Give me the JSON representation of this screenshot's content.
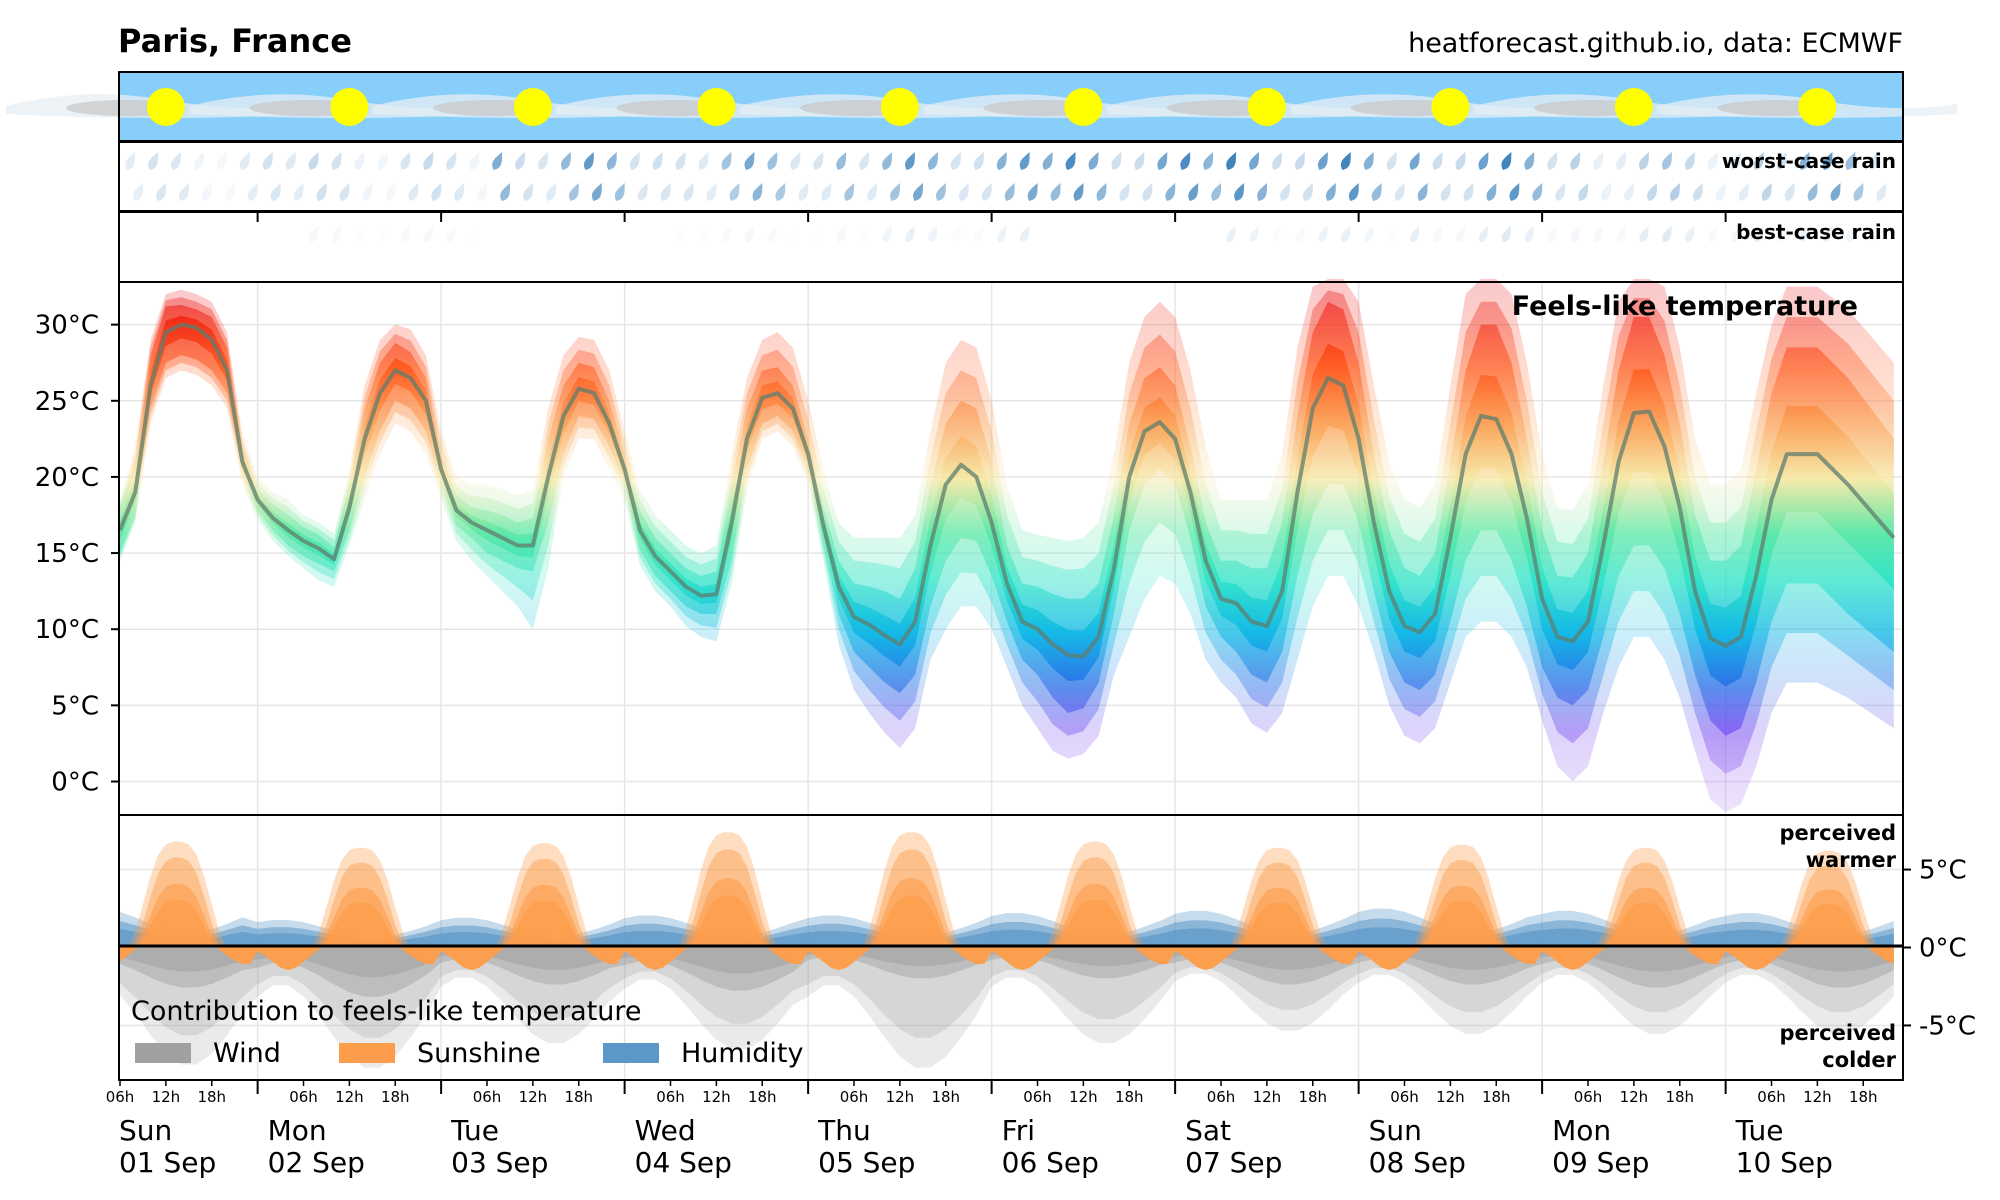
{
  "header": {
    "location": "Paris, France",
    "source": "heatforecast.github.io, data: ECMWF"
  },
  "colors": {
    "sky": "#87cefa",
    "sun": "#ffff00",
    "cloud": "#c8c8c8",
    "rain": "#1f6fb2",
    "wind": "#a0a0a0",
    "sunshine": "#fd9d4b",
    "humidity": "#5b97c8",
    "median_line": "#5e7e6e"
  },
  "chart_data": [
    {
      "type": "area",
      "panel": "sky",
      "days": [
        "Sun",
        "Mon",
        "Tue",
        "Wed",
        "Thu",
        "Fri",
        "Sat",
        "Sun",
        "Mon",
        "Tue"
      ],
      "sun_symbol_count": 10
    },
    {
      "type": "area",
      "panel": "rain",
      "labels": [
        "worst-case rain",
        "best-case rain"
      ],
      "worst_case_intensity": [
        0.2,
        0.25,
        0.7,
        0.6,
        0.7,
        0.8,
        0.85,
        0.85,
        0.4,
        0.7
      ],
      "best_case_intensity": [
        0.0,
        0.05,
        0.0,
        0.05,
        0.1,
        0.0,
        0.1,
        0.15,
        0.15,
        0.1
      ]
    },
    {
      "type": "area",
      "panel": "temperature",
      "title": "Feels-like temperature",
      "unit": "°C",
      "ylim": [
        -2.2,
        32.8
      ],
      "yticks": [
        0,
        5,
        10,
        15,
        20,
        25,
        30
      ],
      "ytick_labels": [
        "0°C",
        "5°C",
        "10°C",
        "15°C",
        "20°C",
        "25°C",
        "30°C"
      ],
      "x_unit": "hours since Sun 01 Sep 06h",
      "x": [
        0,
        2,
        4,
        6,
        8,
        10,
        12,
        14,
        16,
        18,
        20,
        22,
        24,
        26,
        28,
        30,
        32,
        34,
        36,
        38,
        40,
        42,
        44,
        46,
        48,
        50,
        52,
        54,
        56,
        58,
        60,
        62,
        64,
        66,
        68,
        70,
        72,
        74,
        76,
        78,
        80,
        82,
        84,
        86,
        88,
        90,
        92,
        94,
        96,
        98,
        100,
        102,
        104,
        106,
        108,
        110,
        112,
        114,
        116,
        118,
        120,
        122,
        124,
        126,
        128,
        130,
        132,
        134,
        136,
        138,
        140,
        142,
        144,
        146,
        148,
        150,
        152,
        154,
        156,
        158,
        160,
        162,
        164,
        166,
        168,
        170,
        172,
        174,
        176,
        178,
        180,
        182,
        184,
        186,
        188,
        190,
        192,
        194,
        196,
        198,
        200,
        202,
        204,
        206,
        208,
        210,
        212,
        214,
        216,
        218,
        222,
        226,
        232
      ],
      "median": [
        16.5,
        19,
        26,
        29.5,
        30,
        29.8,
        29,
        27,
        21,
        18.5,
        17.3,
        16.5,
        15.8,
        15.3,
        14.6,
        18,
        22.5,
        25.5,
        27,
        26.5,
        25,
        20.5,
        17.8,
        17,
        16.5,
        16,
        15.5,
        15.5,
        20,
        24,
        25.8,
        25.5,
        23.5,
        20.5,
        16.5,
        14.8,
        13.8,
        12.8,
        12.2,
        12.3,
        17,
        22.5,
        25.2,
        25.5,
        24.5,
        21.5,
        16.8,
        12.8,
        10.8,
        10.3,
        9.6,
        9,
        10.5,
        15.5,
        19.5,
        20.8,
        20,
        17,
        13,
        10.5,
        10,
        9,
        8.3,
        8.2,
        9.5,
        14,
        20,
        23,
        23.6,
        22.5,
        19,
        14.5,
        12,
        11.7,
        10.5,
        10.2,
        12.5,
        19,
        24.5,
        26.5,
        26,
        22.5,
        17,
        12.5,
        10.2,
        9.8,
        11,
        16,
        21.5,
        24,
        23.8,
        21.5,
        17.3,
        12,
        9.5,
        9.2,
        10.5,
        15.5,
        21,
        24.2,
        24.3,
        22,
        18,
        12.5,
        9.4,
        8.9,
        9.5,
        13.5,
        18.5,
        21.5,
        21.5,
        19.5,
        16
      ],
      "p10": [
        15,
        17.5,
        24.5,
        27.5,
        28,
        27.7,
        27,
        25.5,
        20.2,
        17.8,
        16.5,
        15.5,
        14.8,
        14.3,
        13.8,
        16.5,
        20,
        23,
        25,
        24.5,
        23,
        19.5,
        16.8,
        16,
        15,
        14.5,
        14,
        13.8,
        17,
        21.5,
        24,
        23.8,
        22,
        19.5,
        15.2,
        13.5,
        12.5,
        11.5,
        11,
        11,
        14.5,
        20.5,
        23.5,
        24,
        23,
        20.5,
        15.5,
        11,
        8.5,
        7.5,
        6.5,
        5.8,
        7,
        11.5,
        14.5,
        16,
        15.8,
        13.5,
        10.5,
        8,
        7,
        5.5,
        4.5,
        4.8,
        6.5,
        11,
        16.5,
        19.5,
        20.5,
        19.5,
        16,
        11.5,
        9.5,
        8.5,
        7,
        6.5,
        8.5,
        13.5,
        17.5,
        19.5,
        19.5,
        17,
        12.5,
        8.5,
        6.5,
        6,
        7,
        10.5,
        14.5,
        16.5,
        16.5,
        14.5,
        11.5,
        7.5,
        5.5,
        5,
        6,
        9.5,
        13.5,
        15.5,
        15.5,
        14,
        11,
        7,
        4,
        3,
        3.5,
        6.5,
        10.5,
        13,
        13,
        11,
        8.5
      ],
      "p90": [
        18,
        21,
        28,
        31.2,
        31.3,
        31,
        30.5,
        28.5,
        22,
        19.2,
        18.2,
        17.5,
        16.7,
        16.2,
        15.4,
        19.5,
        24.5,
        27.5,
        28.8,
        28.2,
        26.5,
        21.5,
        18.8,
        18,
        17.8,
        17.5,
        17,
        17.3,
        22.5,
        26,
        27.5,
        27.2,
        25,
        21.5,
        17.8,
        16,
        15,
        14,
        13.5,
        13.8,
        19.5,
        24.5,
        27,
        27.2,
        26,
        22.5,
        18,
        14.5,
        13,
        12.8,
        12.5,
        12,
        14,
        19.5,
        23.5,
        25,
        24.5,
        21,
        15.5,
        13,
        12.8,
        12.3,
        12,
        12,
        13,
        17.5,
        23.5,
        26.5,
        27.2,
        26,
        22,
        17,
        14.5,
        14.5,
        14,
        14,
        17,
        24,
        29.5,
        31.5,
        31,
        27.5,
        21.5,
        16.5,
        14,
        13.5,
        15,
        21,
        27,
        30,
        30,
        27.5,
        22.5,
        16.5,
        13.5,
        13.4,
        15,
        21,
        27,
        30.5,
        30.5,
        28,
        23.5,
        17.5,
        14.5,
        14.5,
        15.5,
        20.5,
        25.5,
        28.5,
        28.5,
        26.5,
        22.5
      ],
      "min": [
        14.5,
        17,
        23.5,
        26.5,
        27,
        26.7,
        26,
        24.5,
        19.5,
        17.2,
        15.8,
        14.8,
        14,
        13.2,
        12.8,
        15.5,
        18.5,
        21.5,
        23.5,
        23,
        21.5,
        18.5,
        15.8,
        14.5,
        13.5,
        12.5,
        11.5,
        10,
        14,
        20,
        22.5,
        22.5,
        20.5,
        18.5,
        14.2,
        12.5,
        11.5,
        10.2,
        9.5,
        9.2,
        13,
        19,
        22.5,
        23,
        22,
        19.5,
        14.5,
        9,
        6,
        4.5,
        3.2,
        2.2,
        3.5,
        8,
        10,
        11.5,
        11.5,
        10,
        7.5,
        5,
        3.5,
        2,
        1.5,
        1.8,
        3,
        7,
        9.5,
        12,
        13.5,
        13,
        11,
        8,
        6.5,
        5.5,
        3.8,
        3.2,
        4.5,
        8,
        11.5,
        13.5,
        13.5,
        11.5,
        8.5,
        5,
        3,
        2.5,
        3.5,
        6.5,
        9.5,
        10.5,
        10.5,
        9.5,
        7.5,
        4,
        1,
        0,
        1,
        4.5,
        7.5,
        9.5,
        9.5,
        8,
        5.5,
        2,
        -1.2,
        -2,
        -1.5,
        1,
        4.5,
        6.5,
        6.5,
        5.5,
        3.5
      ],
      "max": [
        18.5,
        22,
        29,
        32,
        32.3,
        32,
        31.5,
        29.5,
        22.8,
        20,
        19,
        18.5,
        17.5,
        17,
        16.3,
        20.5,
        26,
        29,
        30,
        29.7,
        28,
        23,
        20,
        19.5,
        19.5,
        19.2,
        18.8,
        19.2,
        24.5,
        28,
        29.2,
        29,
        27,
        23,
        19.2,
        17.5,
        16.5,
        15.5,
        15,
        15.5,
        21.5,
        26.5,
        29,
        29.5,
        28.5,
        25,
        20.5,
        17,
        16,
        16,
        16,
        16,
        17.5,
        23,
        27.5,
        29,
        28.5,
        25,
        19.5,
        16.5,
        16.2,
        16,
        15.8,
        16,
        17,
        21.5,
        27.5,
        30.5,
        31.5,
        30.5,
        27,
        22,
        18.5,
        18.5,
        18.5,
        18.5,
        21.5,
        28.5,
        32.5,
        33,
        33,
        31.5,
        26,
        21,
        18.5,
        18,
        19.5,
        26,
        32,
        33,
        33,
        32,
        27.5,
        21.5,
        18,
        17.8,
        19.5,
        26,
        31.5,
        33,
        33,
        32.5,
        28.5,
        22.5,
        19.5,
        19.5,
        20.5,
        25.5,
        30,
        32.5,
        32.5,
        31,
        27.5
      ]
    },
    {
      "type": "area",
      "panel": "contributions",
      "legend_title": "Contribution to feels-like temperature",
      "legend": [
        "Wind",
        "Sunshine",
        "Humidity"
      ],
      "label_top": "perceived warmer",
      "label_bottom": "perceived colder",
      "unit": "°C",
      "ylim": [
        -8.5,
        8.5
      ],
      "yticks": [
        -5,
        0,
        5
      ],
      "ytick_labels": [
        "-5°C",
        "0°C",
        "5°C"
      ],
      "sunshine_peak": [
        6.8,
        6.4,
        6.7,
        7.4,
        7.4,
        6.8,
        6.4,
        6.6,
        6.4,
        6.2
      ],
      "humidity_level": [
        1.7,
        1.2,
        1.3,
        1.4,
        1.4,
        1.5,
        1.6,
        1.7,
        1.6,
        1.5
      ],
      "wind_median_min": [
        -2.6,
        -3.2,
        -2.4,
        -2.8,
        -2.0,
        -2.0,
        -2.4,
        -2.4,
        -2.6,
        -2.6
      ],
      "wind_worst_min": [
        -7.6,
        -7.8,
        -6.2,
        -6.6,
        -7.8,
        -6.2,
        -5.4,
        -5.6,
        -5.6,
        -5.6
      ]
    }
  ],
  "xaxis": {
    "hour_labels": [
      "06h",
      "12h",
      "18h"
    ],
    "days": [
      {
        "name": "Sun",
        "date": "01 Sep"
      },
      {
        "name": "Mon",
        "date": "02 Sep"
      },
      {
        "name": "Tue",
        "date": "03 Sep"
      },
      {
        "name": "Wed",
        "date": "04 Sep"
      },
      {
        "name": "Thu",
        "date": "05 Sep"
      },
      {
        "name": "Fri",
        "date": "06 Sep"
      },
      {
        "name": "Sat",
        "date": "07 Sep"
      },
      {
        "name": "Sun",
        "date": "08 Sep"
      },
      {
        "name": "Mon",
        "date": "09 Sep"
      },
      {
        "name": "Tue",
        "date": "10 Sep"
      }
    ]
  }
}
